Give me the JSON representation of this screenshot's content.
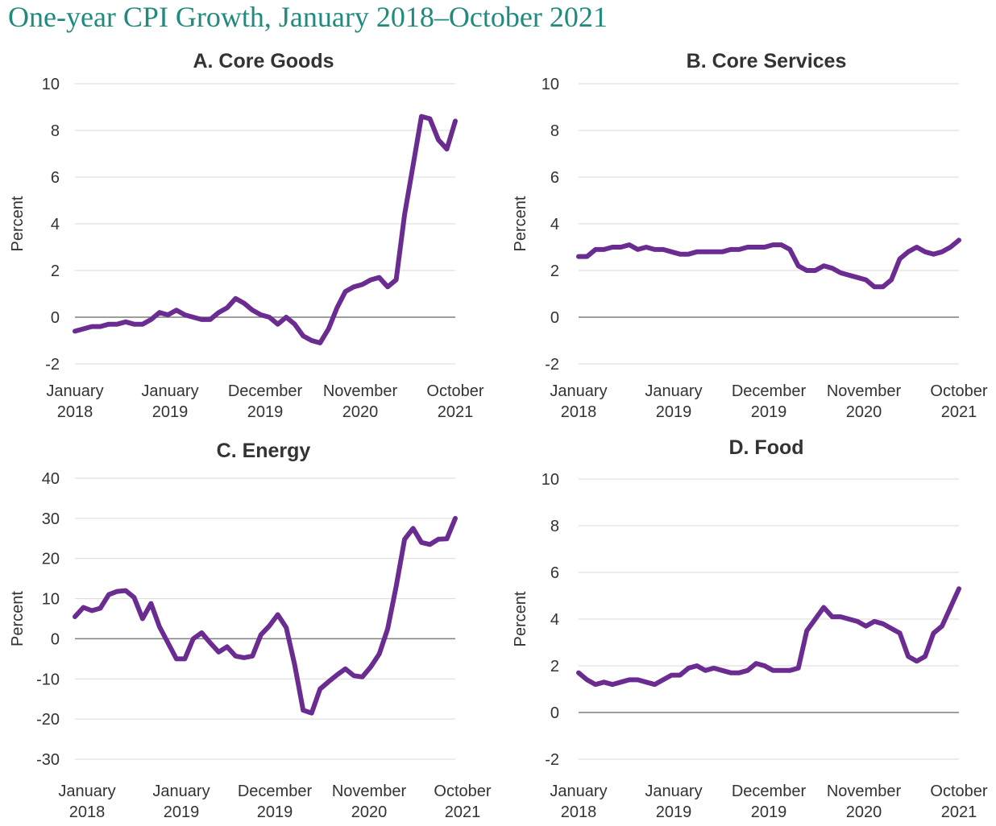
{
  "title": "One-year CPI Growth, January 2018–October 2021",
  "colors": {
    "title": "#1f8a7d",
    "line": "#6b2c91",
    "grid": "#d9d9d9",
    "zero_line": "#7f7f7f"
  },
  "chart_data": [
    {
      "type": "line",
      "title": "A. Core Goods",
      "ylabel": "Percent",
      "ylim": [
        -2,
        10
      ],
      "yticks": [
        10,
        8,
        6,
        4,
        2,
        0,
        -2
      ],
      "xtick_labels": [
        [
          "January",
          "2018"
        ],
        [
          "January",
          "2019"
        ],
        [
          "December",
          "2019"
        ],
        [
          "November",
          "2020"
        ],
        [
          "October",
          "2021"
        ]
      ],
      "series": [
        {
          "values": [
            -0.6,
            -0.5,
            -0.4,
            -0.4,
            -0.3,
            -0.3,
            -0.2,
            -0.3,
            -0.3,
            -0.1,
            0.2,
            0.1,
            0.3,
            0.1,
            0.0,
            -0.1,
            -0.1,
            0.2,
            0.4,
            0.8,
            0.6,
            0.3,
            0.1,
            0.0,
            -0.3,
            0.0,
            -0.3,
            -0.8,
            -1.0,
            -1.1,
            -0.5,
            0.4,
            1.1,
            1.3,
            1.4,
            1.6,
            1.7,
            1.3,
            1.6,
            4.4,
            6.5,
            8.6,
            8.5,
            7.6,
            7.2,
            8.4
          ]
        }
      ],
      "grid": true,
      "legend": "none"
    },
    {
      "type": "line",
      "title": "B. Core Services",
      "ylabel": "Percent",
      "ylim": [
        -2,
        10
      ],
      "yticks": [
        10,
        8,
        6,
        4,
        2,
        0,
        -2
      ],
      "xtick_labels": [
        [
          "January",
          "2018"
        ],
        [
          "January",
          "2019"
        ],
        [
          "December",
          "2019"
        ],
        [
          "November",
          "2020"
        ],
        [
          "October",
          "2021"
        ]
      ],
      "series": [
        {
          "values": [
            2.6,
            2.6,
            2.9,
            2.9,
            3.0,
            3.0,
            3.1,
            2.9,
            3.0,
            2.9,
            2.9,
            2.8,
            2.7,
            2.7,
            2.8,
            2.8,
            2.8,
            2.8,
            2.9,
            2.9,
            3.0,
            3.0,
            3.0,
            3.1,
            3.1,
            2.9,
            2.2,
            2.0,
            2.0,
            2.2,
            2.1,
            1.9,
            1.8,
            1.7,
            1.6,
            1.3,
            1.3,
            1.6,
            2.5,
            2.8,
            3.0,
            2.8,
            2.7,
            2.8,
            3.0,
            3.3
          ]
        }
      ],
      "grid": true,
      "legend": "none"
    },
    {
      "type": "line",
      "title": "C. Energy",
      "ylabel": "Percent",
      "ylim": [
        -30,
        40
      ],
      "yticks": [
        40,
        30,
        20,
        10,
        0,
        -10,
        -20,
        -30
      ],
      "xtick_labels": [
        [
          "January",
          "2018"
        ],
        [
          "January",
          "2019"
        ],
        [
          "December",
          "2019"
        ],
        [
          "November",
          "2020"
        ],
        [
          "October",
          "2021"
        ]
      ],
      "series": [
        {
          "values": [
            5.5,
            7.8,
            7.0,
            7.6,
            11.0,
            11.8,
            12.0,
            10.3,
            5.0,
            8.8,
            3.0,
            -1.0,
            -5.0,
            -5.0,
            0.0,
            1.5,
            -1.0,
            -3.3,
            -2.0,
            -4.3,
            -4.7,
            -4.3,
            1.0,
            3.2,
            6.0,
            2.8,
            -6.5,
            -17.8,
            -18.5,
            -12.5,
            -10.7,
            -9.0,
            -7.5,
            -9.2,
            -9.5,
            -7.0,
            -3.8,
            2.5,
            13.0,
            24.8,
            27.5,
            24.0,
            23.5,
            24.8,
            24.9,
            30.0
          ]
        }
      ],
      "grid": true,
      "legend": "none"
    },
    {
      "type": "line",
      "title": "D. Food",
      "ylabel": "Percent",
      "ylim": [
        -2,
        10
      ],
      "yticks": [
        10,
        8,
        6,
        4,
        2,
        0,
        -2
      ],
      "xtick_labels": [
        [
          "January",
          "2018"
        ],
        [
          "January",
          "2019"
        ],
        [
          "December",
          "2019"
        ],
        [
          "November",
          "2020"
        ],
        [
          "October",
          "2021"
        ]
      ],
      "series": [
        {
          "values": [
            1.7,
            1.4,
            1.2,
            1.3,
            1.2,
            1.3,
            1.4,
            1.4,
            1.3,
            1.2,
            1.4,
            1.6,
            1.6,
            1.9,
            2.0,
            1.8,
            1.9,
            1.8,
            1.7,
            1.7,
            1.8,
            2.1,
            2.0,
            1.8,
            1.8,
            1.8,
            1.9,
            3.5,
            4.0,
            4.5,
            4.1,
            4.1,
            4.0,
            3.9,
            3.7,
            3.9,
            3.8,
            3.6,
            3.4,
            2.4,
            2.2,
            2.4,
            3.4,
            3.7,
            4.5,
            5.3
          ]
        }
      ],
      "grid": true,
      "legend": "none"
    }
  ]
}
